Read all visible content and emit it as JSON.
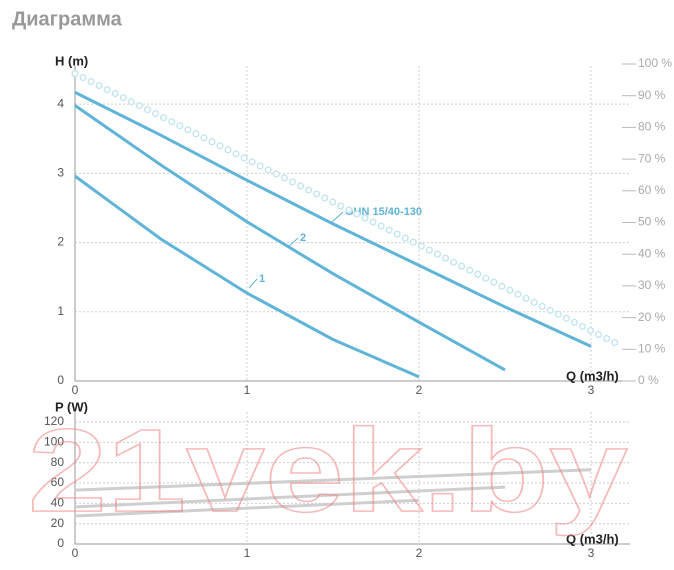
{
  "header": {
    "title": "Диаграмма"
  },
  "watermark": "21vek.by",
  "chart_data": [
    {
      "type": "line",
      "ylabel": "H (m)",
      "xlabel": "Q (m3/h)",
      "xlim": [
        0,
        3
      ],
      "xticks": [
        0,
        1,
        2,
        3
      ],
      "ylim": [
        0,
        4.58
      ],
      "yticks": [
        0,
        1,
        2,
        3,
        4
      ],
      "y2lim": [
        0,
        100
      ],
      "y2ticks": [
        {
          "value": 0,
          "label": "0 %"
        },
        {
          "value": 10,
          "label": "10 %"
        },
        {
          "value": 20,
          "label": "20 %"
        },
        {
          "value": 30,
          "label": "30 %"
        },
        {
          "value": 40,
          "label": "40 %"
        },
        {
          "value": 50,
          "label": "50 %"
        },
        {
          "value": 60,
          "label": "60 %"
        },
        {
          "value": 70,
          "label": "70 %"
        },
        {
          "value": 80,
          "label": "80 %"
        },
        {
          "value": 90,
          "label": "90 %"
        },
        {
          "value": 100,
          "label": "100 %"
        }
      ],
      "grid": true,
      "series": [
        {
          "name": "GHN 15/40-130",
          "color": "#5fb4d8",
          "x": [
            0,
            0.5,
            1,
            1.5,
            2,
            2.5,
            3
          ],
          "values": [
            4.17,
            3.55,
            2.9,
            2.27,
            1.67,
            1.07,
            0.5
          ]
        },
        {
          "name": "2",
          "color": "#5fb4d8",
          "x": [
            0,
            0.5,
            1,
            1.5,
            2,
            2.5
          ],
          "values": [
            3.98,
            3.12,
            2.3,
            1.55,
            0.85,
            0.16
          ]
        },
        {
          "name": "1",
          "color": "#5fb4d8",
          "x": [
            0,
            0.5,
            1,
            1.5,
            2
          ],
          "values": [
            2.96,
            2.05,
            1.27,
            0.6,
            0.06
          ]
        },
        {
          "color": "#bfe2f0",
          "axis": "y2",
          "style": "dotted",
          "x": [
            0,
            3.18
          ],
          "values": [
            97,
            11
          ]
        }
      ]
    },
    {
      "type": "line",
      "ylabel": "P (W)",
      "xlabel": "Q (m3/h)",
      "xlim": [
        0,
        3
      ],
      "xticks": [
        0,
        1,
        2,
        3
      ],
      "ylim": [
        0,
        120
      ],
      "yticks": [
        0,
        20,
        40,
        60,
        80,
        100,
        120
      ],
      "grid": true,
      "series": [
        {
          "color": "#cfcfcf",
          "x": [
            0,
            3
          ],
          "values": [
            53,
            73
          ]
        },
        {
          "color": "#cfcfcf",
          "x": [
            0,
            2.5
          ],
          "values": [
            36.5,
            56
          ]
        },
        {
          "color": "#cfcfcf",
          "x": [
            0,
            2
          ],
          "values": [
            27.5,
            43
          ]
        }
      ]
    }
  ]
}
